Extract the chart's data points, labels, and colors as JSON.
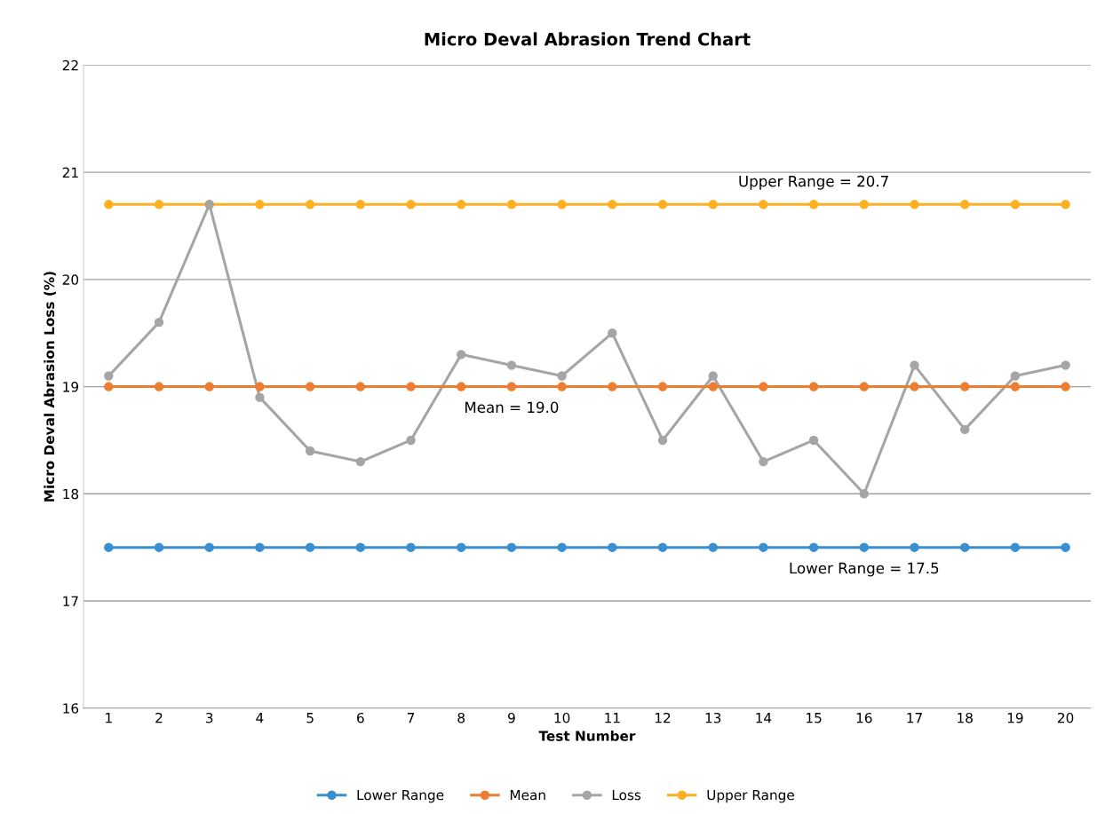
{
  "chart_data": {
    "type": "line",
    "title": "Micro Deval Abrasion Trend Chart",
    "xlabel": "Test Number",
    "ylabel": "Micro Deval Abrasion Loss (%)",
    "categories": [
      "1",
      "2",
      "3",
      "4",
      "5",
      "6",
      "7",
      "8",
      "9",
      "10",
      "11",
      "12",
      "13",
      "14",
      "15",
      "16",
      "17",
      "18",
      "19",
      "20"
    ],
    "series": [
      {
        "name": "Lower Range",
        "color": "#3a8fd0",
        "values": [
          17.5,
          17.5,
          17.5,
          17.5,
          17.5,
          17.5,
          17.5,
          17.5,
          17.5,
          17.5,
          17.5,
          17.5,
          17.5,
          17.5,
          17.5,
          17.5,
          17.5,
          17.5,
          17.5,
          17.5
        ]
      },
      {
        "name": "Mean",
        "color": "#ed7d31",
        "values": [
          19.0,
          19.0,
          19.0,
          19.0,
          19.0,
          19.0,
          19.0,
          19.0,
          19.0,
          19.0,
          19.0,
          19.0,
          19.0,
          19.0,
          19.0,
          19.0,
          19.0,
          19.0,
          19.0,
          19.0
        ]
      },
      {
        "name": "Loss",
        "color": "#a5a5a5",
        "values": [
          19.1,
          19.6,
          20.7,
          18.9,
          18.4,
          18.3,
          18.5,
          19.3,
          19.2,
          19.1,
          19.5,
          18.5,
          19.1,
          18.3,
          18.5,
          18.0,
          19.2,
          18.6,
          19.1,
          19.2
        ]
      },
      {
        "name": "Upper Range",
        "color": "#ffb020",
        "values": [
          20.7,
          20.7,
          20.7,
          20.7,
          20.7,
          20.7,
          20.7,
          20.7,
          20.7,
          20.7,
          20.7,
          20.7,
          20.7,
          20.7,
          20.7,
          20.7,
          20.7,
          20.7,
          20.7,
          20.7
        ]
      }
    ],
    "annotations": [
      {
        "text": "Upper Range = 20.7",
        "x": "15",
        "y": 20.7
      },
      {
        "text": "Mean = 19.0",
        "x": "9",
        "y": 19.0
      },
      {
        "text": "Lower Range = 17.5",
        "x": "16",
        "y": 17.5
      }
    ],
    "ylim": [
      16,
      22
    ],
    "yticks": [
      16,
      17,
      18,
      19,
      20,
      21,
      22
    ],
    "grid": "y",
    "legend": "bottom",
    "marker": "circle",
    "line_style": "solid"
  }
}
